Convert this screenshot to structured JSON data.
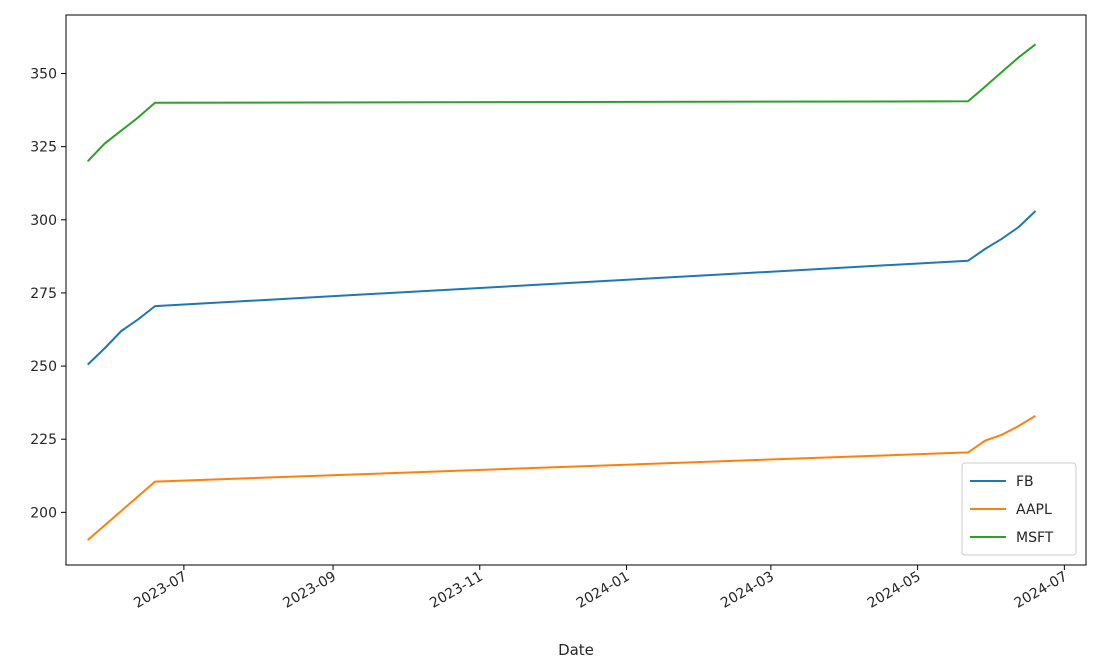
{
  "chart_data": {
    "type": "line",
    "xlabel": "Date",
    "ylabel": "",
    "title": "",
    "x_tick_labels": [
      "2023-07",
      "2023-09",
      "2023-11",
      "2024-01",
      "2024-03",
      "2024-05",
      "2024-07"
    ],
    "x_tick_dates": [
      "2023-07-01",
      "2023-09-01",
      "2023-11-01",
      "2024-01-01",
      "2024-03-01",
      "2024-05-01",
      "2024-07-01"
    ],
    "y_ticks": [
      200,
      225,
      250,
      275,
      300,
      325,
      350
    ],
    "y_tick_labels": [
      "200",
      "225",
      "250",
      "275",
      "300",
      "325",
      "350"
    ],
    "xlim": [
      "2023-05-13",
      "2024-07-10"
    ],
    "ylim": [
      182,
      370
    ],
    "grid": false,
    "legend_position": "lower right",
    "series": [
      {
        "name": "FB",
        "color": "#1f77b4",
        "points": [
          [
            "2023-05-22",
            250.5
          ],
          [
            "2023-05-29",
            256
          ],
          [
            "2023-06-05",
            262
          ],
          [
            "2023-06-12",
            266
          ],
          [
            "2023-06-19",
            270.5
          ],
          [
            "2024-05-22",
            286
          ],
          [
            "2024-05-29",
            290
          ],
          [
            "2024-06-05",
            293.5
          ],
          [
            "2024-06-12",
            297.5
          ],
          [
            "2024-06-19",
            303
          ]
        ]
      },
      {
        "name": "AAPL",
        "color": "#ff7f0e",
        "points": [
          [
            "2023-05-22",
            190.5
          ],
          [
            "2023-05-29",
            195.5
          ],
          [
            "2023-06-05",
            200.5
          ],
          [
            "2023-06-12",
            205.5
          ],
          [
            "2023-06-19",
            210.5
          ],
          [
            "2024-05-22",
            220.5
          ],
          [
            "2024-05-29",
            224.5
          ],
          [
            "2024-06-05",
            226.5
          ],
          [
            "2024-06-12",
            229.5
          ],
          [
            "2024-06-19",
            233
          ]
        ]
      },
      {
        "name": "MSFT",
        "color": "#2ca02c",
        "points": [
          [
            "2023-05-22",
            320
          ],
          [
            "2023-05-29",
            326
          ],
          [
            "2023-06-05",
            330.5
          ],
          [
            "2023-06-12",
            335
          ],
          [
            "2023-06-19",
            340
          ],
          [
            "2024-05-22",
            340.5
          ],
          [
            "2024-05-29",
            345.5
          ],
          [
            "2024-06-05",
            350.5
          ],
          [
            "2024-06-12",
            355.5
          ],
          [
            "2024-06-19",
            360
          ]
        ]
      }
    ]
  }
}
